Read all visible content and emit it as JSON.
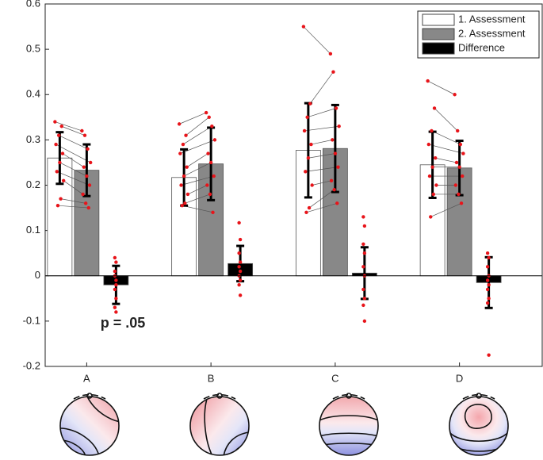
{
  "chart_data": {
    "type": "bar",
    "categories": [
      "A",
      "B",
      "C",
      "D"
    ],
    "ylim": [
      -0.2,
      0.6
    ],
    "yticks": [
      -0.2,
      -0.1,
      0,
      0.1,
      0.2,
      0.3,
      0.4,
      0.5,
      0.6
    ],
    "point_color": "#e8141a",
    "legend": "top-right",
    "annotation": "p = .05",
    "series": [
      {
        "name": "1. Assessment",
        "color": "#ffffff",
        "values": [
          0.26,
          0.217,
          0.277,
          0.245
        ],
        "errors": [
          0.057,
          0.062,
          0.104,
          0.073
        ],
        "points": [
          [
            0.34,
            0.33,
            0.31,
            0.29,
            0.27,
            0.25,
            0.23,
            0.21,
            0.17,
            0.155
          ],
          [
            0.335,
            0.31,
            0.29,
            0.27,
            0.24,
            0.22,
            0.2,
            0.18,
            0.16,
            0.155
          ],
          [
            0.55,
            0.38,
            0.35,
            0.32,
            0.29,
            0.26,
            0.23,
            0.2,
            0.15,
            0.14
          ],
          [
            0.43,
            0.37,
            0.32,
            0.29,
            0.26,
            0.24,
            0.22,
            0.2,
            0.18,
            0.13
          ]
        ]
      },
      {
        "name": "2. Assessment",
        "color": "#888888",
        "values": [
          0.233,
          0.247,
          0.281,
          0.238
        ],
        "errors": [
          0.057,
          0.08,
          0.096,
          0.06
        ],
        "points": [
          [
            0.32,
            0.31,
            0.28,
            0.25,
            0.24,
            0.22,
            0.2,
            0.18,
            0.16,
            0.15
          ],
          [
            0.36,
            0.35,
            0.33,
            0.3,
            0.27,
            0.25,
            0.22,
            0.2,
            0.18,
            0.14
          ],
          [
            0.49,
            0.45,
            0.37,
            0.33,
            0.3,
            0.27,
            0.24,
            0.21,
            0.19,
            0.16
          ],
          [
            0.4,
            0.32,
            0.29,
            0.27,
            0.25,
            0.24,
            0.22,
            0.2,
            0.18,
            0.16
          ]
        ]
      },
      {
        "name": "Difference",
        "color": "#000000",
        "values": [
          -0.02,
          0.027,
          0.006,
          -0.015
        ],
        "errors": [
          0.042,
          0.039,
          0.057,
          0.056
        ],
        "points": [
          [
            0.04,
            0.03,
            0.01,
            -0.01,
            -0.03,
            -0.05,
            -0.07,
            -0.08,
            0,
            -0.02
          ],
          [
            0.117,
            0.08,
            0.05,
            0.03,
            0.02,
            0.01,
            0,
            -0.01,
            -0.02,
            -0.043
          ],
          [
            0.13,
            0.11,
            0.07,
            0.05,
            0.02,
            0,
            -0.03,
            -0.05,
            -0.065,
            -0.1
          ],
          [
            0.05,
            0.04,
            0.02,
            0,
            -0.01,
            -0.02,
            -0.03,
            -0.05,
            -0.06,
            -0.175
          ]
        ]
      }
    ]
  }
}
